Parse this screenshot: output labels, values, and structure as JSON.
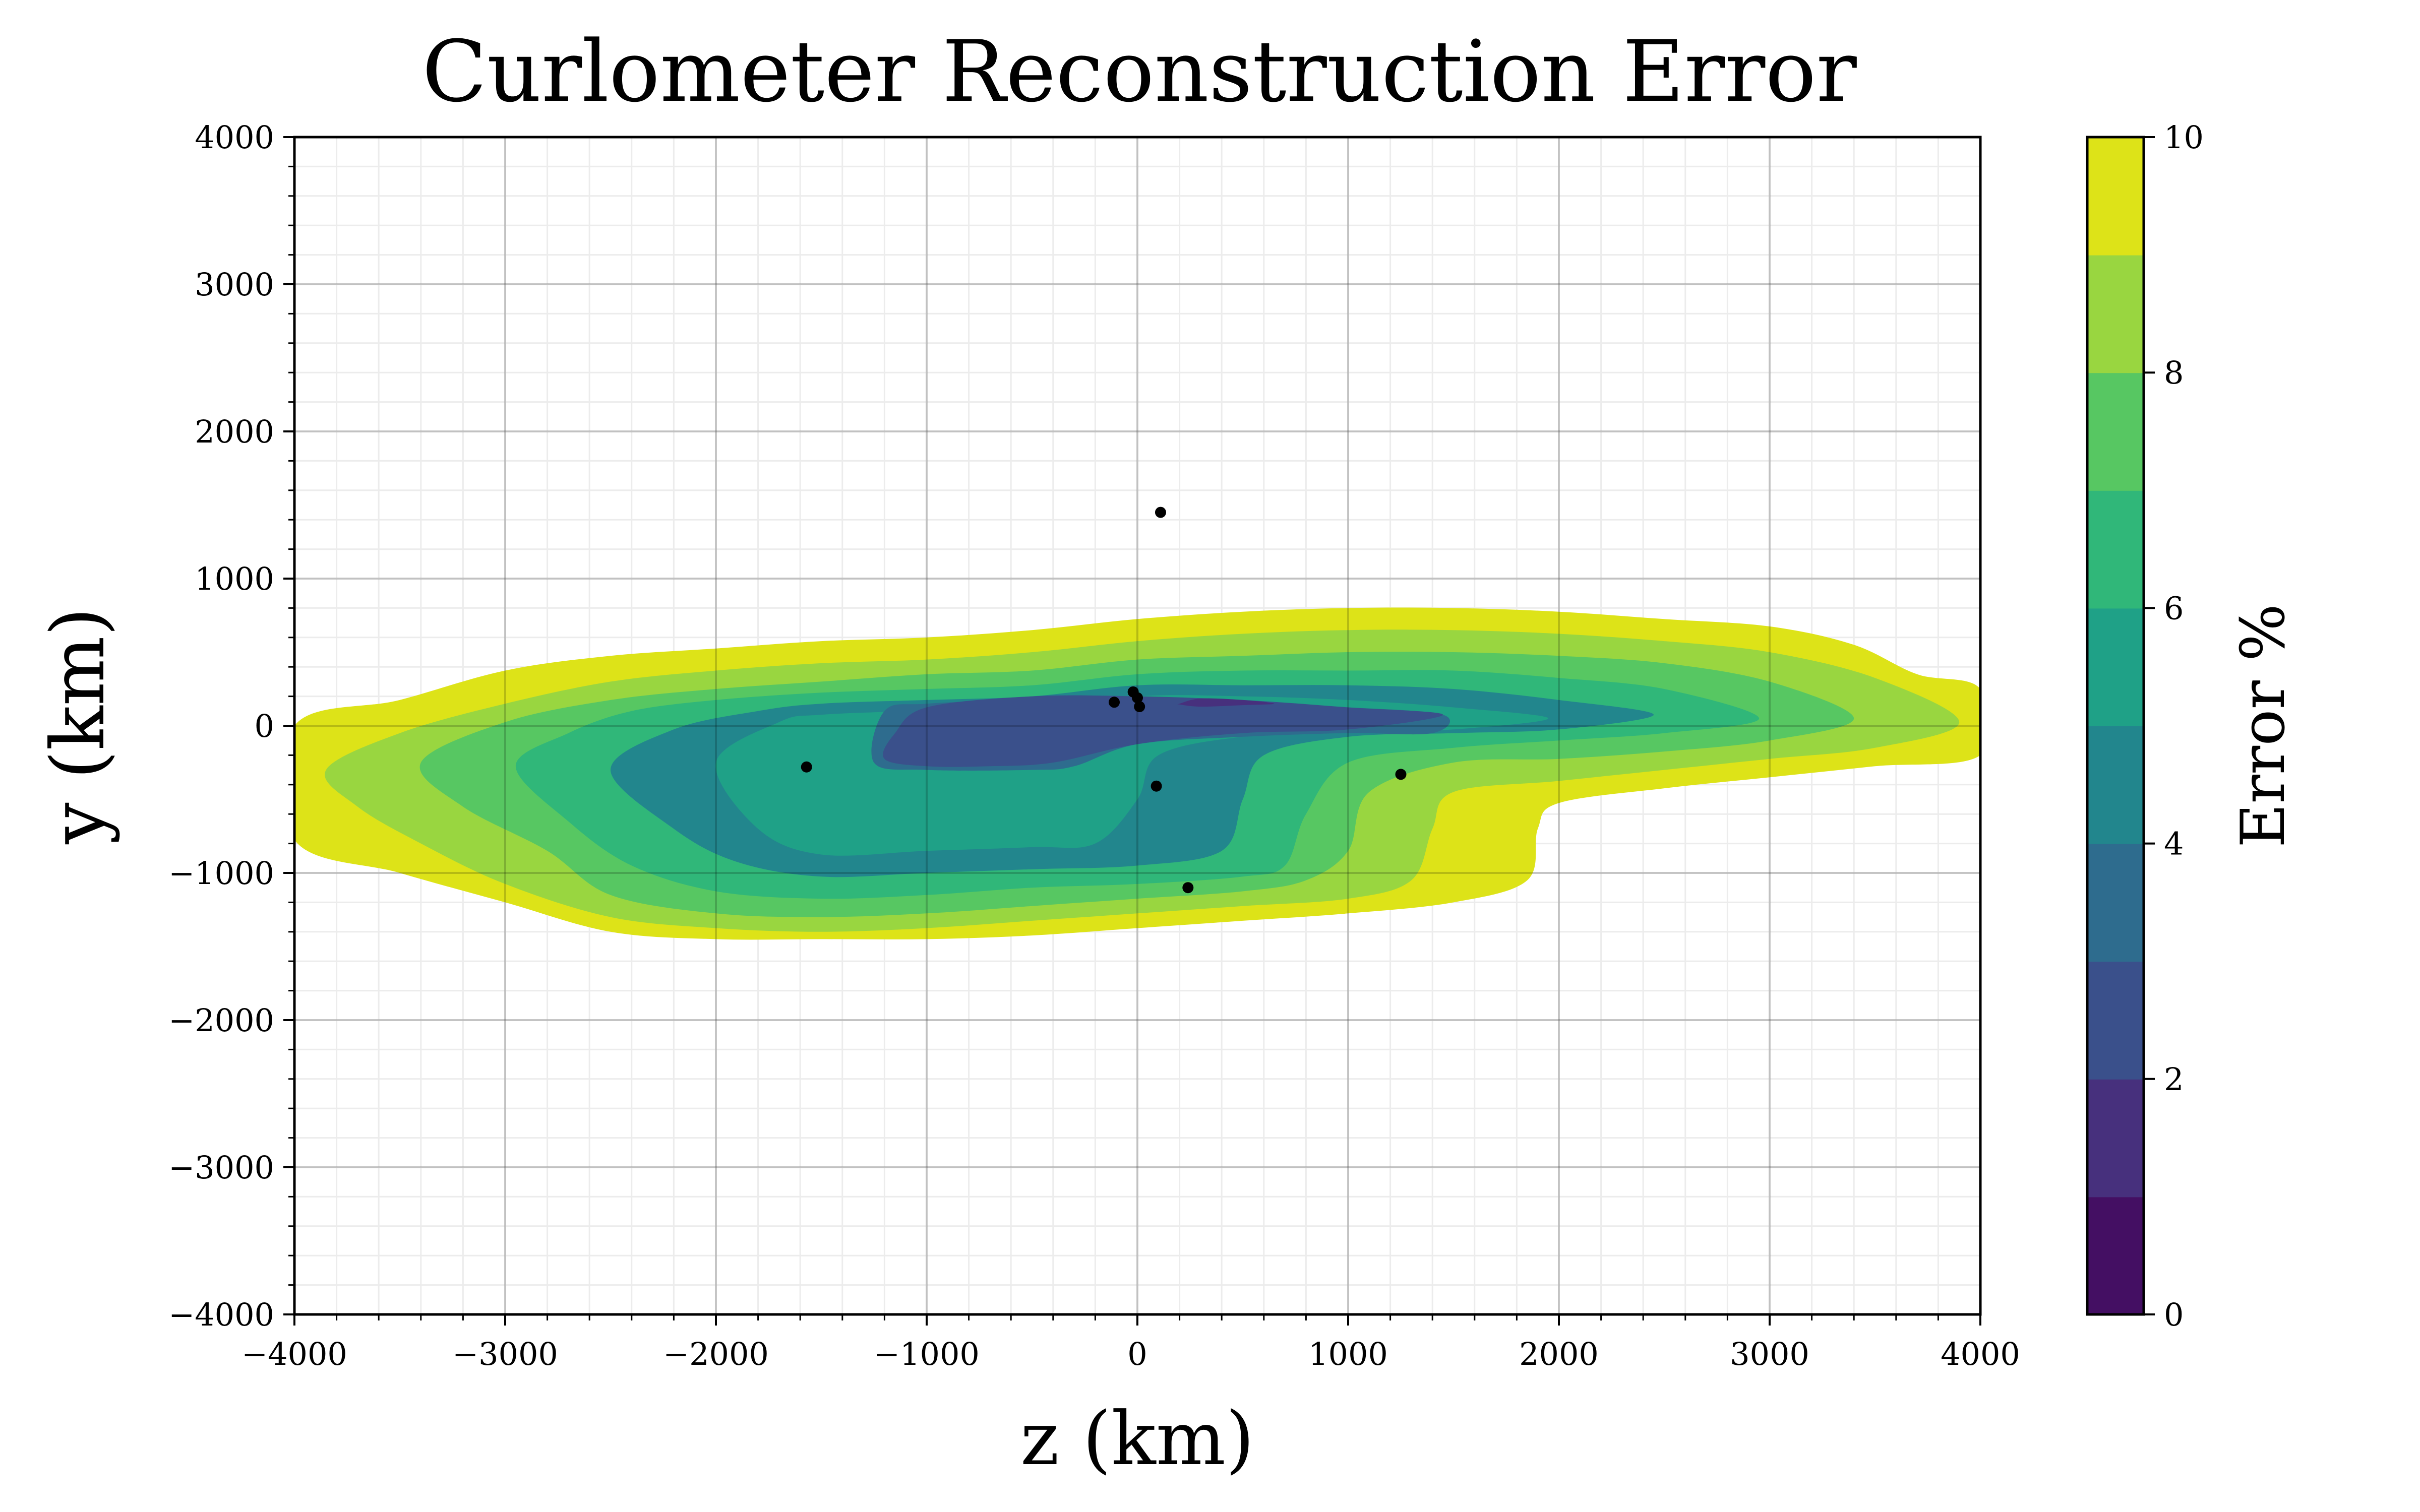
{
  "chart_data": {
    "type": "contour",
    "title": "Curlometer Reconstruction Error",
    "xlabel": "z (km)",
    "ylabel": "y (km)",
    "xlim": [
      -4000,
      4000
    ],
    "ylim": [
      -4000,
      4000
    ],
    "x_ticks": [
      -4000,
      -3000,
      -2000,
      -1000,
      0,
      1000,
      2000,
      3000,
      4000
    ],
    "y_ticks": [
      -4000,
      -3000,
      -2000,
      -1000,
      0,
      1000,
      2000,
      3000,
      4000
    ],
    "x_tick_labels": [
      "−4000",
      "−3000",
      "−2000",
      "−1000",
      "0",
      "1000",
      "2000",
      "3000",
      "4000"
    ],
    "y_tick_labels": [
      "−4000",
      "−3000",
      "−2000",
      "−1000",
      "0",
      "1000",
      "2000",
      "3000",
      "4000"
    ],
    "grid": true,
    "colorbar": {
      "label": "Error %",
      "min": 0,
      "max": 10,
      "ticks": [
        0,
        2,
        4,
        6,
        8,
        10
      ],
      "tick_labels": [
        "0",
        "2",
        "4",
        "6",
        "8",
        "10"
      ],
      "colors": [
        "#440f63",
        "#47307d",
        "#3a508b",
        "#2e6c8e",
        "#22868d",
        "#1fa187",
        "#30b779",
        "#57c762",
        "#99d640",
        "#dde318"
      ]
    },
    "contour_levels": [
      {
        "level": 10,
        "color": "#dde318",
        "points": [
          [
            -4000,
            0
          ],
          [
            -3500,
            175
          ],
          [
            -3000,
            375
          ],
          [
            -2500,
            475
          ],
          [
            -2000,
            525
          ],
          [
            -1500,
            575
          ],
          [
            -1000,
            600
          ],
          [
            -500,
            650
          ],
          [
            0,
            725
          ],
          [
            500,
            775
          ],
          [
            1000,
            800
          ],
          [
            1500,
            800
          ],
          [
            2000,
            775
          ],
          [
            2500,
            725
          ],
          [
            3000,
            675
          ],
          [
            3400,
            550
          ],
          [
            3700,
            350
          ],
          [
            4000,
            250
          ],
          [
            4000,
            -200
          ],
          [
            3500,
            -275
          ],
          [
            3000,
            -350
          ],
          [
            2500,
            -425
          ],
          [
            2000,
            -525
          ],
          [
            1900,
            -700
          ],
          [
            1850,
            -1050
          ],
          [
            1500,
            -1200
          ],
          [
            1000,
            -1275
          ],
          [
            500,
            -1325
          ],
          [
            0,
            -1375
          ],
          [
            -500,
            -1425
          ],
          [
            -1000,
            -1450
          ],
          [
            -1500,
            -1450
          ],
          [
            -2000,
            -1450
          ],
          [
            -2500,
            -1400
          ],
          [
            -3000,
            -1200
          ],
          [
            -3500,
            -1000
          ],
          [
            -4000,
            -775
          ]
        ]
      },
      {
        "level": 9,
        "color": "#99d640",
        "points": [
          [
            -3850,
            -300
          ],
          [
            -3500,
            -50
          ],
          [
            -3000,
            150
          ],
          [
            -2500,
            300
          ],
          [
            -2000,
            375
          ],
          [
            -1500,
            425
          ],
          [
            -1000,
            450
          ],
          [
            -500,
            500
          ],
          [
            0,
            575
          ],
          [
            500,
            625
          ],
          [
            1000,
            650
          ],
          [
            1500,
            650
          ],
          [
            2000,
            625
          ],
          [
            2500,
            575
          ],
          [
            3000,
            500
          ],
          [
            3500,
            325
          ],
          [
            3900,
            25
          ],
          [
            3500,
            -150
          ],
          [
            3000,
            -225
          ],
          [
            2500,
            -300
          ],
          [
            2000,
            -375
          ],
          [
            1500,
            -450
          ],
          [
            1400,
            -700
          ],
          [
            1300,
            -1050
          ],
          [
            1000,
            -1175
          ],
          [
            500,
            -1225
          ],
          [
            0,
            -1275
          ],
          [
            -500,
            -1325
          ],
          [
            -1000,
            -1375
          ],
          [
            -1500,
            -1400
          ],
          [
            -2000,
            -1375
          ],
          [
            -2500,
            -1300
          ],
          [
            -3000,
            -1075
          ],
          [
            -3400,
            -800
          ],
          [
            -3700,
            -550
          ]
        ]
      },
      {
        "level": 8,
        "color": "#57c762",
        "points": [
          [
            -3400,
            -250
          ],
          [
            -3000,
            25
          ],
          [
            -2500,
            175
          ],
          [
            -2000,
            250
          ],
          [
            -1500,
            300
          ],
          [
            -1000,
            350
          ],
          [
            -500,
            375
          ],
          [
            0,
            450
          ],
          [
            500,
            475
          ],
          [
            1000,
            500
          ],
          [
            1500,
            500
          ],
          [
            2000,
            475
          ],
          [
            2500,
            425
          ],
          [
            3000,
            300
          ],
          [
            3400,
            50
          ],
          [
            3000,
            -100
          ],
          [
            2500,
            -175
          ],
          [
            2000,
            -225
          ],
          [
            1500,
            -250
          ],
          [
            1100,
            -450
          ],
          [
            1000,
            -850
          ],
          [
            800,
            -1050
          ],
          [
            500,
            -1125
          ],
          [
            0,
            -1175
          ],
          [
            -500,
            -1225
          ],
          [
            -1000,
            -1275
          ],
          [
            -1500,
            -1300
          ],
          [
            -2000,
            -1275
          ],
          [
            -2500,
            -1150
          ],
          [
            -2800,
            -850
          ],
          [
            -3200,
            -550
          ]
        ]
      },
      {
        "level": 7,
        "color": "#30b779",
        "points": [
          [
            -2950,
            -275
          ],
          [
            -2700,
            -50
          ],
          [
            -2400,
            100
          ],
          [
            -2000,
            175
          ],
          [
            -1500,
            225
          ],
          [
            -1000,
            250
          ],
          [
            -500,
            275
          ],
          [
            0,
            350
          ],
          [
            500,
            375
          ],
          [
            1000,
            375
          ],
          [
            1500,
            375
          ],
          [
            2000,
            325
          ],
          [
            2500,
            250
          ],
          [
            2950,
            50
          ],
          [
            2500,
            -50
          ],
          [
            2000,
            -100
          ],
          [
            1500,
            -150
          ],
          [
            1000,
            -250
          ],
          [
            800,
            -600
          ],
          [
            700,
            -950
          ],
          [
            500,
            -1025
          ],
          [
            0,
            -1075
          ],
          [
            -500,
            -1100
          ],
          [
            -1000,
            -1150
          ],
          [
            -1500,
            -1175
          ],
          [
            -2000,
            -1125
          ],
          [
            -2400,
            -950
          ],
          [
            -2700,
            -650
          ]
        ]
      },
      {
        "level": 6,
        "color": "#22868d",
        "points": [
          [
            -2500,
            -300
          ],
          [
            -2200,
            -25
          ],
          [
            -1800,
            100
          ],
          [
            -1500,
            150
          ],
          [
            -1000,
            175
          ],
          [
            -500,
            200
          ],
          [
            0,
            275
          ],
          [
            500,
            275
          ],
          [
            1000,
            275
          ],
          [
            1500,
            250
          ],
          [
            2000,
            175
          ],
          [
            2450,
            75
          ],
          [
            2000,
            -25
          ],
          [
            1500,
            -50
          ],
          [
            1000,
            -75
          ],
          [
            600,
            -200
          ],
          [
            500,
            -500
          ],
          [
            400,
            -850
          ],
          [
            0,
            -950
          ],
          [
            -500,
            -975
          ],
          [
            -1000,
            -1000
          ],
          [
            -1500,
            -1025
          ],
          [
            -1900,
            -925
          ],
          [
            -2200,
            -700
          ]
        ]
      },
      {
        "level": 5,
        "color": "#1fa187",
        "points": [
          [
            -2000,
            -250
          ],
          [
            -1700,
            25
          ],
          [
            -1500,
            75
          ],
          [
            -1000,
            100
          ],
          [
            -500,
            100
          ],
          [
            0,
            200
          ],
          [
            500,
            200
          ],
          [
            1000,
            175
          ],
          [
            1500,
            125
          ],
          [
            1950,
            50
          ],
          [
            1500,
            -25
          ],
          [
            1000,
            -50
          ],
          [
            500,
            -75
          ],
          [
            100,
            -200
          ],
          [
            0,
            -500
          ],
          [
            -200,
            -800
          ],
          [
            -500,
            -825
          ],
          [
            -1000,
            -850
          ],
          [
            -1500,
            -875
          ],
          [
            -1800,
            -700
          ]
        ]
      },
      {
        "level": 4,
        "color": "#2e6c8e",
        "points": [
          [
            -1250,
            -250
          ],
          [
            -1200,
            100
          ],
          [
            -1000,
            150
          ],
          [
            -500,
            175
          ],
          [
            0,
            175
          ],
          [
            500,
            150
          ],
          [
            1000,
            125
          ],
          [
            1450,
            75
          ],
          [
            1400,
            -50
          ],
          [
            1000,
            -50
          ],
          [
            500,
            -75
          ],
          [
            0,
            -125
          ],
          [
            -300,
            -275
          ],
          [
            -500,
            -300
          ],
          [
            -1000,
            -300
          ]
        ]
      },
      {
        "level": 3,
        "color": "#3a508b",
        "points": [
          [
            -1200,
            -225
          ],
          [
            -1150,
            -50
          ],
          [
            -1000,
            125
          ],
          [
            -500,
            200
          ],
          [
            0,
            200
          ],
          [
            500,
            175
          ],
          [
            1000,
            125
          ],
          [
            1450,
            75
          ],
          [
            1000,
            -25
          ],
          [
            500,
            -50
          ],
          [
            0,
            -125
          ],
          [
            -400,
            -250
          ],
          [
            -700,
            -275
          ],
          [
            -1000,
            -275
          ]
        ]
      },
      {
        "level": 2,
        "color": "#47307d",
        "points": [
          [
            200,
            150
          ],
          [
            300,
            185
          ],
          [
            500,
            175
          ],
          [
            650,
            150
          ],
          [
            500,
            140
          ],
          [
            300,
            130
          ],
          [
            200,
            145
          ]
        ]
      }
    ],
    "scatter_points": [
      {
        "x": 110,
        "y": 1450
      },
      {
        "x": -1570,
        "y": -280
      },
      {
        "x": -110,
        "y": 160
      },
      {
        "x": -20,
        "y": 230
      },
      {
        "x": 0,
        "y": 190
      },
      {
        "x": 10,
        "y": 130
      },
      {
        "x": 90,
        "y": -410
      },
      {
        "x": 1250,
        "y": -330
      },
      {
        "x": 240,
        "y": -1100
      }
    ]
  }
}
